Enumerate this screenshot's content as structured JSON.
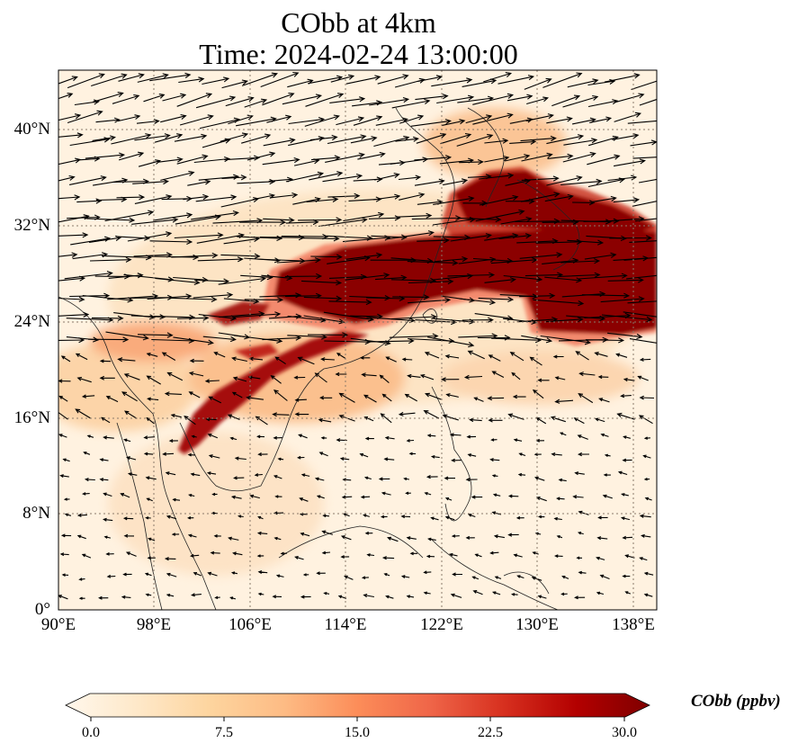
{
  "title": {
    "line1": "CObb at 4km",
    "line2": "Time: 2024-02-24 13:00:00"
  },
  "map": {
    "variable": "COBB",
    "extent": {
      "lon": [
        90,
        140
      ],
      "lat": [
        0,
        45
      ]
    },
    "lat_ticks": [
      "0°",
      "8°N",
      "16°N",
      "24°N",
      "32°N",
      "40°N"
    ],
    "lon_ticks": [
      "90°E",
      "98°E",
      "106°E",
      "114°E",
      "122°E",
      "130°E",
      "138°E"
    ],
    "gridlines": "dotted",
    "wind_vectors": true,
    "plume_color": "#7f0000"
  },
  "colorbar": {
    "label": "CObb (ppbv)",
    "min": 0.0,
    "max": 30.0,
    "ticks": [
      "0.0",
      "7.5",
      "15.0",
      "22.5",
      "30.0"
    ],
    "extend": "both",
    "colormap": [
      "#fff7ec",
      "#fee8c8",
      "#fdd49e",
      "#fdbb84",
      "#fc8d59",
      "#ef6548",
      "#d7301f",
      "#b30000",
      "#7f0000"
    ]
  }
}
